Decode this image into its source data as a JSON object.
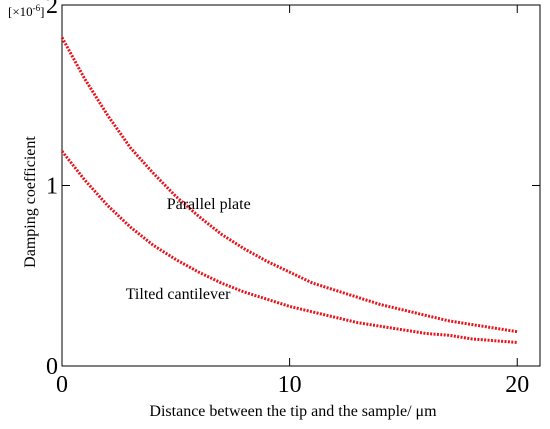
{
  "chart_data": {
    "type": "line",
    "xlabel": "Distance between the tip and the sample/  μm",
    "ylabel": "Damping coefficient",
    "multiplier_base": "[×10",
    "multiplier_exp": "-6",
    "multiplier_close": "]",
    "xlim": [
      0,
      21
    ],
    "ylim": [
      0,
      2
    ],
    "x_ticks": [
      "0",
      "10",
      "20"
    ],
    "y_ticks": [
      "0",
      "1",
      "2"
    ],
    "x_tick_values": [
      0,
      10,
      20
    ],
    "y_tick_values": [
      0,
      1,
      2
    ],
    "grid": false,
    "series_color": "#e8141b",
    "series": [
      {
        "x": [
          0,
          1,
          2,
          3,
          4,
          5,
          6,
          7,
          8,
          9,
          10,
          11,
          12,
          13,
          14,
          15,
          16,
          17,
          18,
          19,
          20
        ],
        "values": [
          1.82,
          1.59,
          1.39,
          1.21,
          1.07,
          0.94,
          0.83,
          0.73,
          0.65,
          0.58,
          0.52,
          0.46,
          0.42,
          0.38,
          0.34,
          0.31,
          0.28,
          0.25,
          0.23,
          0.21,
          0.19
        ]
      },
      {
        "x": [
          0,
          1,
          2,
          3,
          4,
          5,
          6,
          7,
          8,
          9,
          10,
          11,
          12,
          13,
          14,
          15,
          16,
          17,
          18,
          19,
          20
        ],
        "values": [
          1.19,
          1.03,
          0.89,
          0.77,
          0.67,
          0.59,
          0.52,
          0.46,
          0.41,
          0.37,
          0.33,
          0.3,
          0.27,
          0.24,
          0.22,
          0.2,
          0.18,
          0.17,
          0.15,
          0.14,
          0.13
        ]
      }
    ],
    "annotations": [
      {
        "text": "Parallel plate",
        "x": 4.6,
        "y": 0.87
      },
      {
        "text": "Tilted cantilever",
        "x": 2.8,
        "y": 0.37
      }
    ]
  }
}
